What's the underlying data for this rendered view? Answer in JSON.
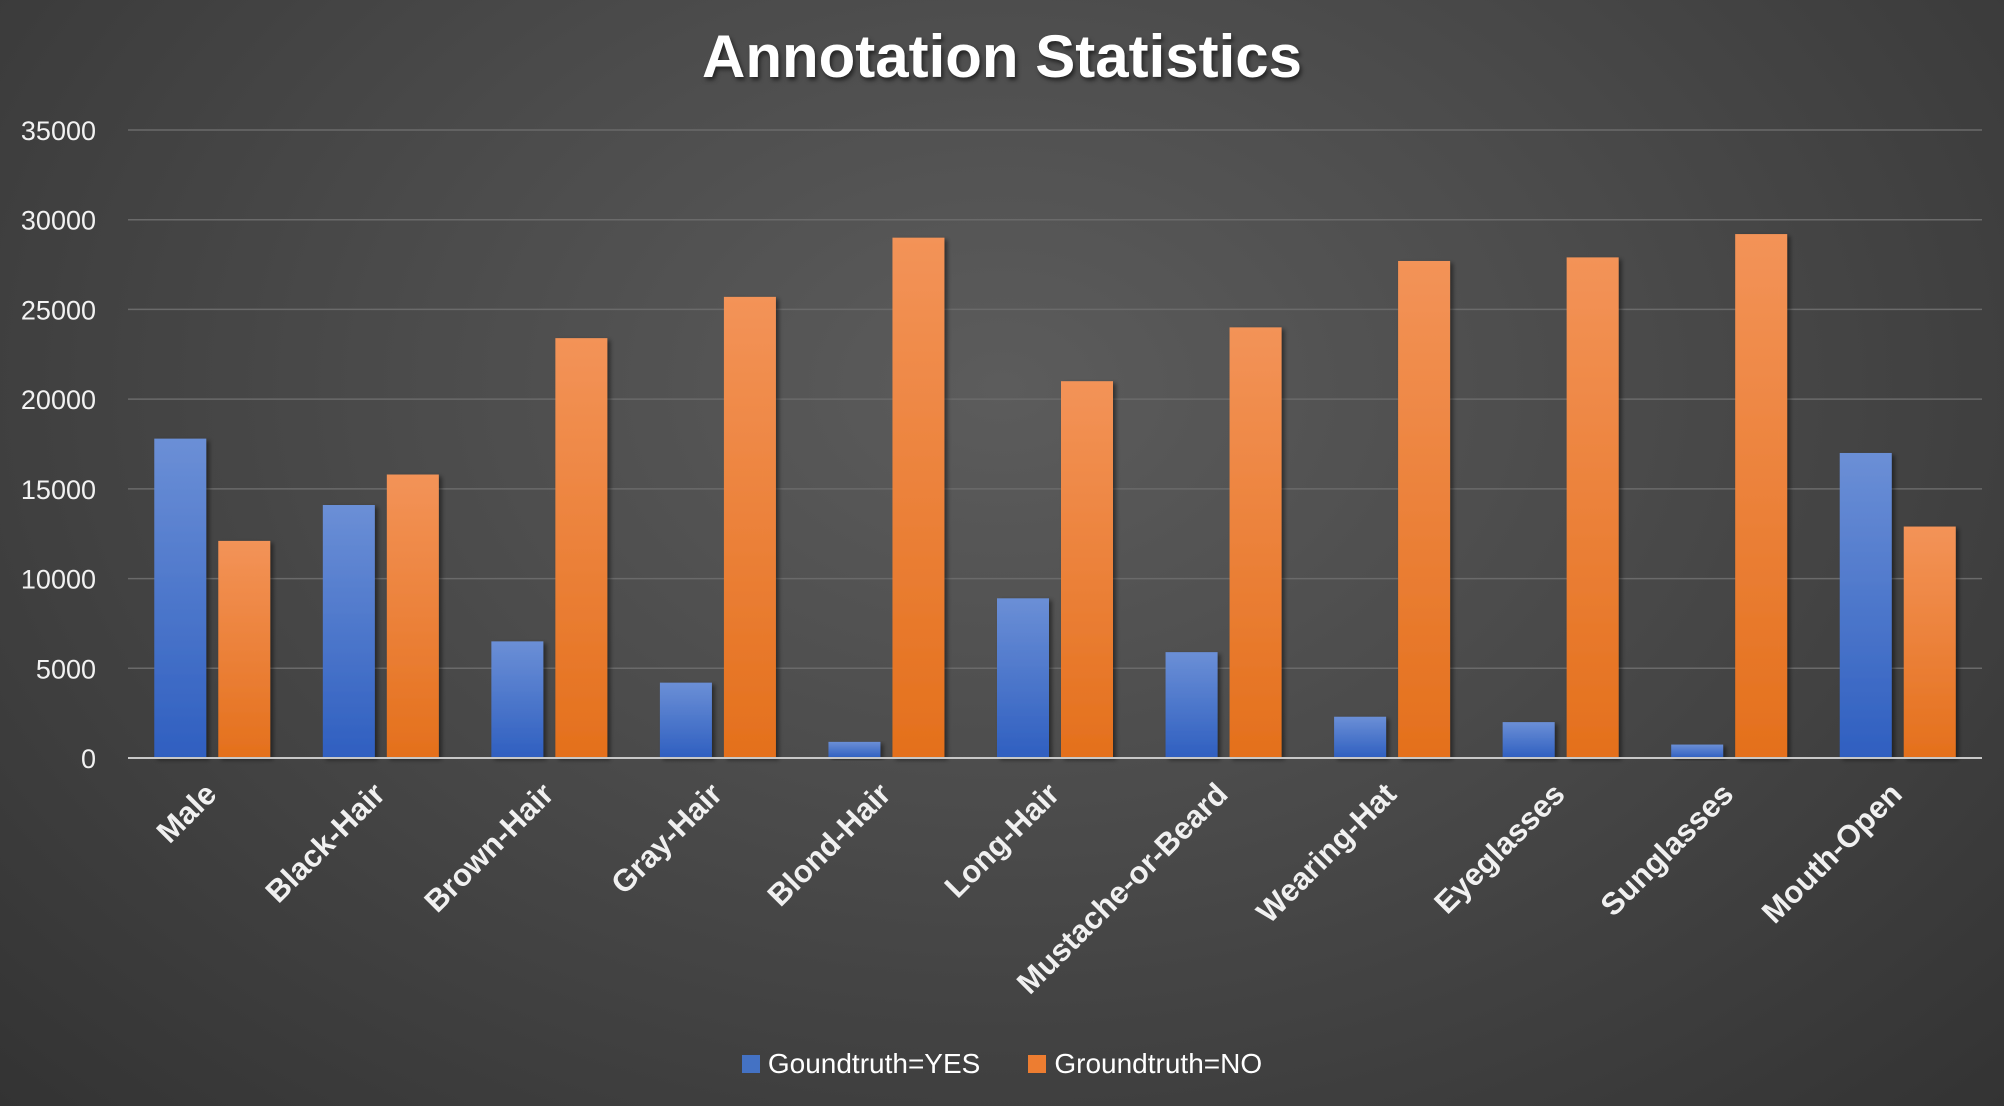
{
  "chart_data": {
    "type": "bar",
    "title": "Annotation Statistics",
    "xlabel": "",
    "ylabel": "",
    "ylim": [
      0,
      35000
    ],
    "yticks": [
      0,
      5000,
      10000,
      15000,
      20000,
      25000,
      30000,
      35000
    ],
    "ytick_labels": [
      "0",
      "5000",
      "10000",
      "15000",
      "20000",
      "25000",
      "30000",
      "35000"
    ],
    "grid": true,
    "legend_position": "bottom",
    "categories": [
      "Male",
      "Black-Hair",
      "Brown-Hair",
      "Gray-Hair",
      "Blond-Hair",
      "Long-Hair",
      "Mustache-or-Beard",
      "Wearing-Hat",
      "Eyeglasses",
      "Sunglasses",
      "Mouth-Open"
    ],
    "series": [
      {
        "name": "Goundtruth=YES",
        "color": "#4472c4",
        "values": [
          17800,
          14100,
          6500,
          4200,
          900,
          8900,
          5900,
          2300,
          2000,
          750,
          17000
        ]
      },
      {
        "name": "Groundtruth=NO",
        "color": "#ed7d31",
        "values": [
          12100,
          15800,
          23400,
          25700,
          29000,
          21000,
          24000,
          27700,
          27900,
          29200,
          12900
        ]
      }
    ]
  }
}
